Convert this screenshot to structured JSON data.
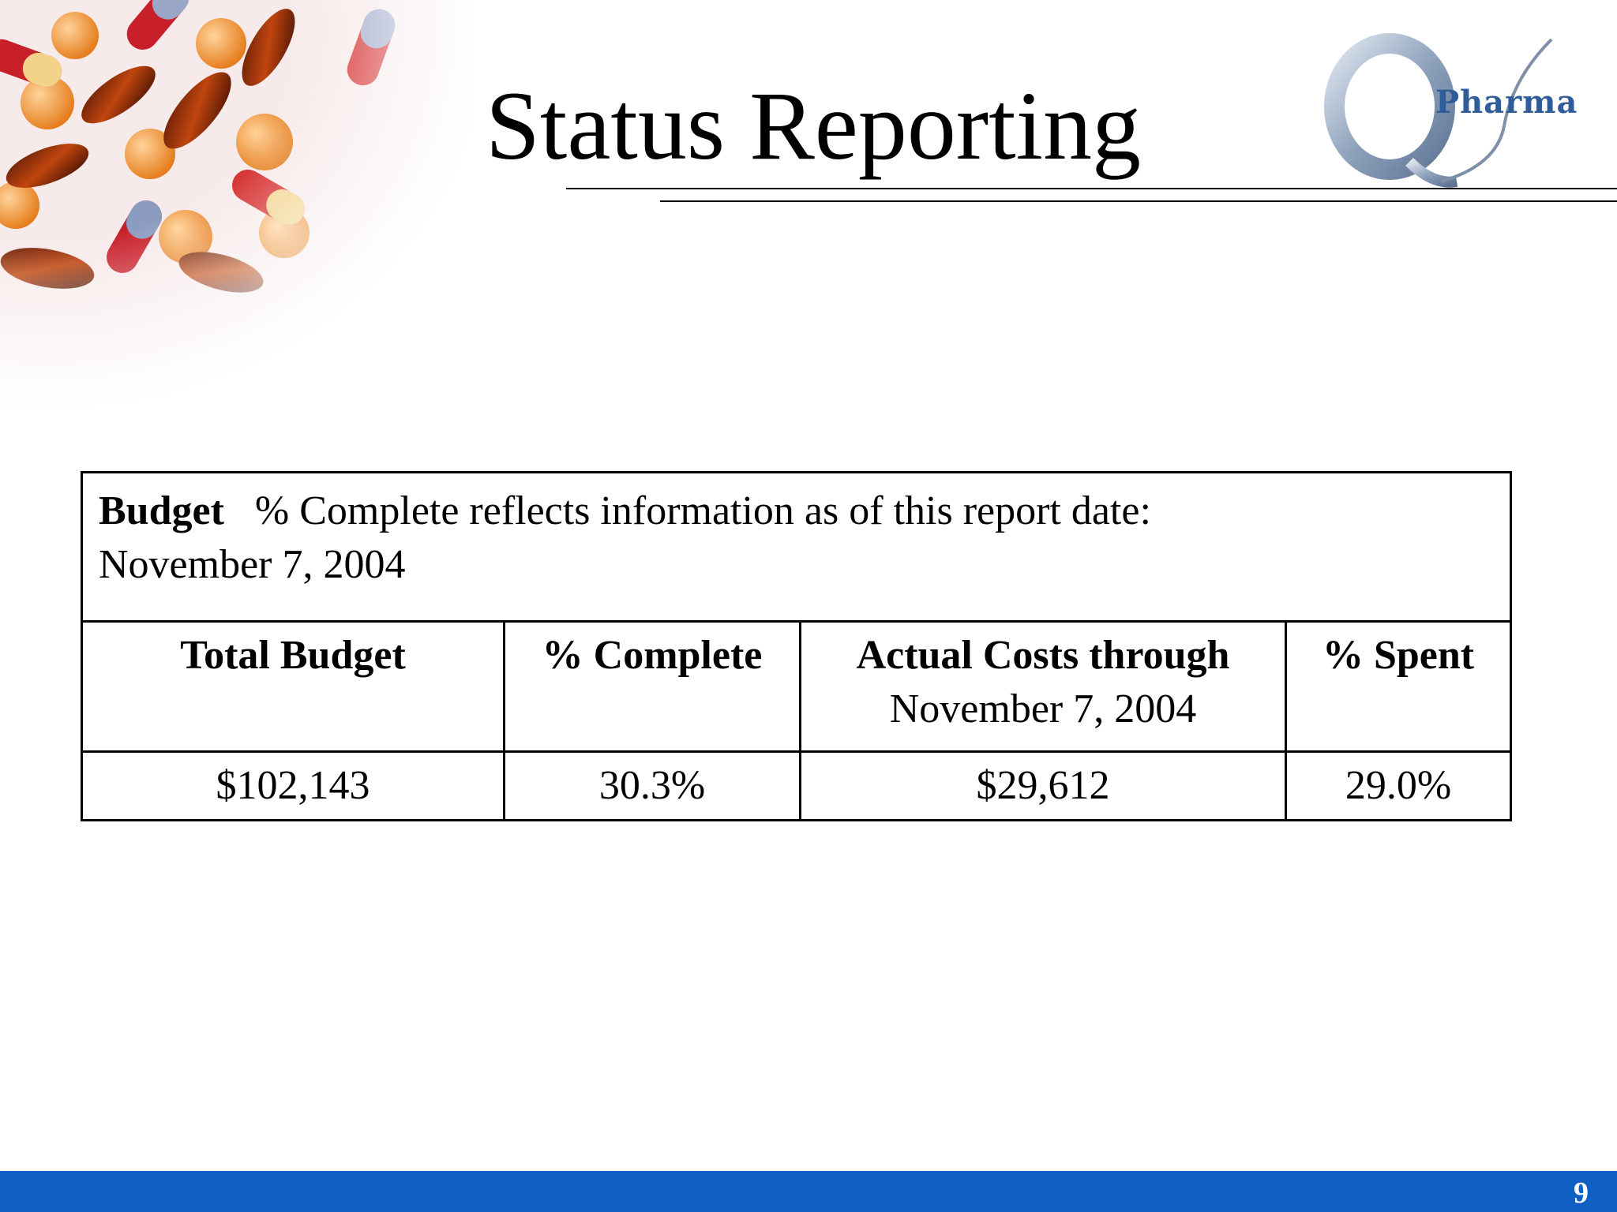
{
  "slide": {
    "title": "Status Reporting",
    "logo_text": "Pharma",
    "page_number": "9"
  },
  "table": {
    "caption_label": "Budget",
    "caption_text": "% Complete reflects information as of this report date:",
    "caption_date": "November 7, 2004",
    "headers": [
      {
        "label": "Total Budget",
        "sub": ""
      },
      {
        "label": "% Complete",
        "sub": ""
      },
      {
        "label": "Actual Costs through",
        "sub": "November 7, 2004"
      },
      {
        "label": "% Spent",
        "sub": ""
      }
    ],
    "values": [
      "$102,143",
      "30.3%",
      "$29,612",
      "29.0%"
    ]
  },
  "colors": {
    "footer_bar": "#0f5fc4",
    "logo_blue": "#2f5d9a"
  }
}
